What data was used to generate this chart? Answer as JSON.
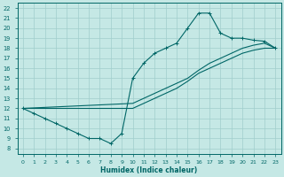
{
  "xlabel": "Humidex (Indice chaleur)",
  "xlim": [
    -0.5,
    23.5
  ],
  "ylim": [
    7.5,
    22.5
  ],
  "xticks": [
    0,
    1,
    2,
    3,
    4,
    5,
    6,
    7,
    8,
    9,
    10,
    11,
    12,
    13,
    14,
    15,
    16,
    17,
    18,
    19,
    20,
    21,
    22,
    23
  ],
  "yticks": [
    8,
    9,
    10,
    11,
    12,
    13,
    14,
    15,
    16,
    17,
    18,
    19,
    20,
    21,
    22
  ],
  "bg_color": "#c5e8e5",
  "grid_color": "#a0cecc",
  "line_color": "#006666",
  "curve_upper_x": [
    0,
    1,
    2,
    3,
    4,
    5,
    6,
    7,
    8,
    9,
    10,
    11,
    12,
    13,
    14,
    15,
    16,
    17,
    18,
    19,
    20,
    21,
    22,
    23
  ],
  "curve_upper_y": [
    12,
    11.5,
    11,
    10.5,
    10,
    9.5,
    9,
    9,
    8.5,
    9.5,
    15,
    16.5,
    17.5,
    18,
    18.5,
    20,
    21.5,
    21.5,
    19.5,
    19,
    19,
    18.8,
    18.7,
    18
  ],
  "curve_mid_x": [
    0,
    10,
    11,
    12,
    13,
    14,
    15,
    16,
    17,
    18,
    19,
    20,
    21,
    22,
    23
  ],
  "curve_mid_y": [
    12,
    12.5,
    13,
    13.5,
    14,
    14.5,
    15,
    15.8,
    16.5,
    17,
    17.5,
    18,
    18.3,
    18.5,
    18
  ],
  "curve_low_x": [
    0,
    10,
    11,
    12,
    13,
    14,
    15,
    16,
    17,
    18,
    19,
    20,
    21,
    22,
    23
  ],
  "curve_low_y": [
    12,
    12,
    12.5,
    13,
    13.5,
    14,
    14.7,
    15.5,
    16,
    16.5,
    17,
    17.5,
    17.8,
    18,
    18
  ]
}
